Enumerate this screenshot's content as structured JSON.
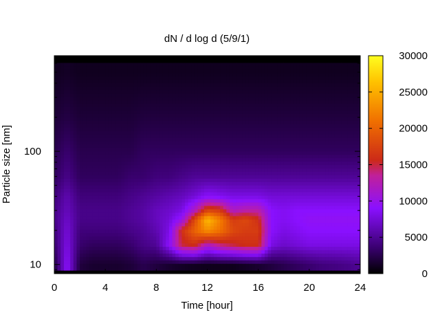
{
  "chart_data": {
    "type": "heatmap",
    "title": "dN / d log d (5/9/1)",
    "xlabel": "Time [hour]",
    "ylabel": "Particle size [nm]",
    "xlim": [
      0,
      24
    ],
    "x_ticks": [
      "0",
      "4",
      "8",
      "12",
      "16",
      "20",
      "24"
    ],
    "y_scale": "log",
    "ylim_nm": [
      8.3,
      700
    ],
    "y_ticks": [
      "10",
      "100"
    ],
    "colorbar": {
      "range": [
        0,
        30000
      ],
      "ticks": [
        "0",
        "5000",
        "10000",
        "15000",
        "20000",
        "25000",
        "30000"
      ],
      "palette": "black-purple-red-orange-yellow"
    },
    "approximate_concentration_cm3": {
      "x_hour": [
        0,
        1,
        2,
        3,
        4,
        5,
        6,
        7,
        8,
        9,
        10,
        11,
        12,
        13,
        14,
        15,
        16,
        17,
        18,
        19,
        20,
        21,
        22,
        23,
        24
      ],
      "size_nm": [
        10,
        15,
        20,
        25,
        30,
        40,
        60,
        100,
        200,
        500
      ],
      "values": [
        [
          2000,
          9000,
          2000,
          1500,
          1500,
          1500,
          1800,
          2500,
          2000,
          1500,
          1200,
          1000,
          900,
          900,
          900,
          1200,
          1500,
          2000,
          2500,
          3000,
          3500,
          4000,
          4200,
          4500,
          5000
        ],
        [
          3500,
          8000,
          3500,
          3000,
          3000,
          3000,
          3500,
          4500,
          5000,
          9000,
          15000,
          16000,
          12000,
          14000,
          15000,
          16000,
          16000,
          8000,
          7000,
          7500,
          8000,
          8000,
          8000,
          8000,
          8000
        ],
        [
          4000,
          7500,
          4000,
          4000,
          4000,
          4000,
          4500,
          5000,
          6000,
          8000,
          16000,
          20000,
          23000,
          21000,
          18000,
          17000,
          17000,
          9000,
          8000,
          8500,
          9000,
          9000,
          9000,
          9000,
          9000
        ],
        [
          4500,
          7000,
          4500,
          4500,
          4500,
          4500,
          5000,
          5500,
          6500,
          7500,
          10000,
          18000,
          26000,
          22000,
          17000,
          18000,
          16000,
          9000,
          8500,
          9000,
          9500,
          9500,
          9500,
          9500,
          9500
        ],
        [
          4500,
          6500,
          4500,
          4500,
          4500,
          4500,
          5000,
          5500,
          6500,
          7000,
          8000,
          12000,
          18000,
          17000,
          12000,
          13000,
          13000,
          9000,
          8500,
          9000,
          9000,
          9000,
          9000,
          9000,
          9000
        ],
        [
          4000,
          6000,
          4000,
          4000,
          4000,
          4000,
          4500,
          5000,
          5500,
          6000,
          6500,
          7500,
          9000,
          8500,
          8000,
          8000,
          8000,
          7500,
          7500,
          7500,
          7500,
          7500,
          7500,
          7500,
          7500
        ],
        [
          3000,
          4500,
          3000,
          3000,
          3000,
          3000,
          3500,
          3500,
          4000,
          4000,
          4500,
          5000,
          5000,
          5000,
          5000,
          5000,
          5000,
          5000,
          5000,
          5000,
          5000,
          5000,
          5000,
          5000,
          5000
        ],
        [
          2500,
          3500,
          2500,
          2500,
          2500,
          2500,
          2500,
          3000,
          3000,
          3000,
          3000,
          3000,
          3000,
          3000,
          3000,
          3000,
          3000,
          3000,
          3000,
          3000,
          3000,
          3000,
          3000,
          3000,
          3000
        ],
        [
          1800,
          2200,
          1800,
          1800,
          1800,
          1800,
          1800,
          2000,
          2000,
          2000,
          2000,
          2000,
          2000,
          2000,
          2000,
          2000,
          2000,
          2000,
          2000,
          2000,
          2000,
          2000,
          2000,
          2000,
          2000
        ],
        [
          1000,
          1200,
          1000,
          1000,
          1000,
          1000,
          1000,
          1000,
          1000,
          1000,
          1000,
          1000,
          1000,
          1000,
          1000,
          1000,
          1000,
          1000,
          1000,
          1000,
          1000,
          1000,
          1000,
          1000,
          1000
        ]
      ]
    }
  }
}
